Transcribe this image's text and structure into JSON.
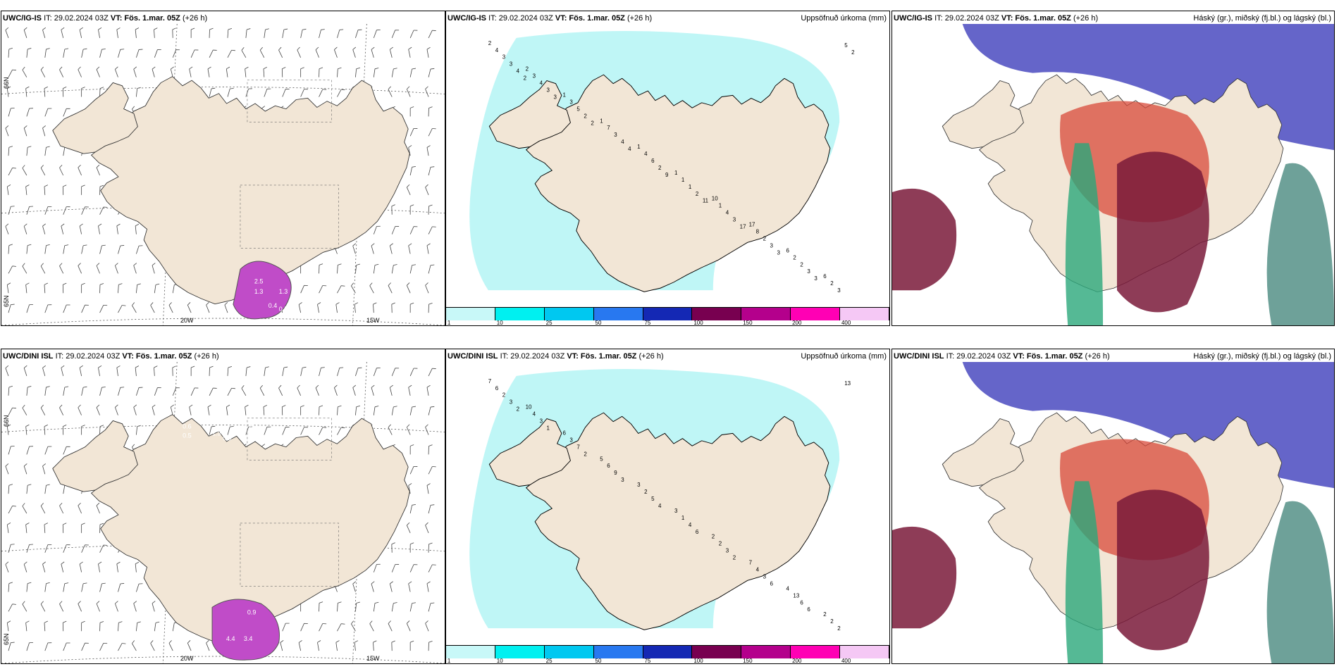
{
  "panels": {
    "p1": {
      "model": "UWC/IG-IS",
      "it": "IT: 29.02.2024 03Z",
      "vt_label": "VT:",
      "vt": "Fös. 1.mar. 05Z",
      "lead": "(+26 h)",
      "title": ""
    },
    "p2": {
      "model": "UWC/IG-IS",
      "it": "IT: 29.02.2024 03Z",
      "vt_label": "VT:",
      "vt": "Fös. 1.mar. 05Z",
      "lead": "(+26 h)",
      "title": "Uppsöfnuð úrkoma (mm)"
    },
    "p3": {
      "model": "UWC/IG-IS",
      "it": "IT: 29.02.2024 03Z",
      "vt_label": "VT:",
      "vt": "Fös. 1.mar. 05Z",
      "lead": "(+26 h)",
      "title": "Háský (gr.), miðský (fj.bl.) og lágský (bl.)"
    },
    "p4": {
      "model": "UWC/DINI ISL",
      "it": "IT: 29.02.2024 03Z",
      "vt_label": "VT:",
      "vt": "Fös. 1.mar. 05Z",
      "lead": "(+26 h)",
      "title": ""
    },
    "p5": {
      "model": "UWC/DINI ISL",
      "it": "IT: 29.02.2024 03Z",
      "vt_label": "VT:",
      "vt": "Fös. 1.mar. 05Z",
      "lead": "(+26 h)",
      "title": "Uppsöfnuð úrkoma (mm)"
    },
    "p6": {
      "model": "UWC/DINI ISL",
      "it": "IT: 29.02.2024 03Z",
      "vt_label": "VT:",
      "vt": "Fös. 1.mar. 05Z",
      "lead": "(+26 h)",
      "title": "Háský (gr.), miðský (fj.bl.) og lágský (bl.)"
    }
  },
  "axes": {
    "lat66": "66N",
    "lat65": "65N",
    "lat64": "64N",
    "lon20": "20W",
    "lon15": "15W"
  },
  "colorbar": {
    "ticks": [
      "1",
      "10",
      "25",
      "50",
      "75",
      "100",
      "150",
      "200",
      "400"
    ],
    "colors": [
      "#c8f8f8",
      "#00f0f0",
      "#00c8f0",
      "#2878f0",
      "#1428b4",
      "#780050",
      "#b4008c",
      "#ff00b4",
      "#f5c8f5"
    ]
  },
  "precip_labels_top": [
    "2",
    "2",
    "1",
    "1",
    "1",
    "1",
    "10",
    "17",
    "6",
    "6",
    "4",
    "3",
    "3",
    "7",
    "4",
    "1",
    "1",
    "8",
    "2",
    "2",
    "3",
    "4",
    "5",
    "3",
    "6",
    "1",
    "4",
    "2",
    "2",
    "3",
    "3",
    "3",
    "2",
    "4",
    "2",
    "2",
    "3",
    "3",
    "3",
    "5",
    "4",
    "3",
    "2",
    "4",
    "9",
    "11",
    "17",
    "3",
    "3",
    "2",
    "2"
  ],
  "precip_labels_bottom": [
    "7",
    "10",
    "6",
    "5",
    "3",
    "3",
    "2",
    "7",
    "4",
    "2",
    "6",
    "4",
    "3",
    "6",
    "2",
    "1",
    "2",
    "4",
    "13",
    "2",
    "2",
    "3",
    "7",
    "9",
    "5",
    "4",
    "3",
    "3",
    "6",
    "2",
    "3",
    "1",
    "2",
    "3",
    "4",
    "6",
    "2",
    "6",
    "6",
    "13",
    "2"
  ],
  "wind_labels_top": [
    "2.5",
    "1.3",
    "1.3",
    "1.5",
    "0.4",
    "0.5"
  ],
  "wind_labels_bottom": [
    "0.6",
    "0.5",
    "1.3",
    "0.5",
    "0.4",
    "0.5",
    "0.5",
    "4.4",
    "3.4",
    "0.9"
  ],
  "colors": {
    "land": "#f2e6d6",
    "precip_light": "#b4f4f4",
    "purple": "#c04cc8",
    "dark_red": "#7a1a3a",
    "red": "#d84a3a",
    "blue": "#4a4ac0",
    "green": "#2aa87a",
    "teal": "#4a8a80"
  }
}
